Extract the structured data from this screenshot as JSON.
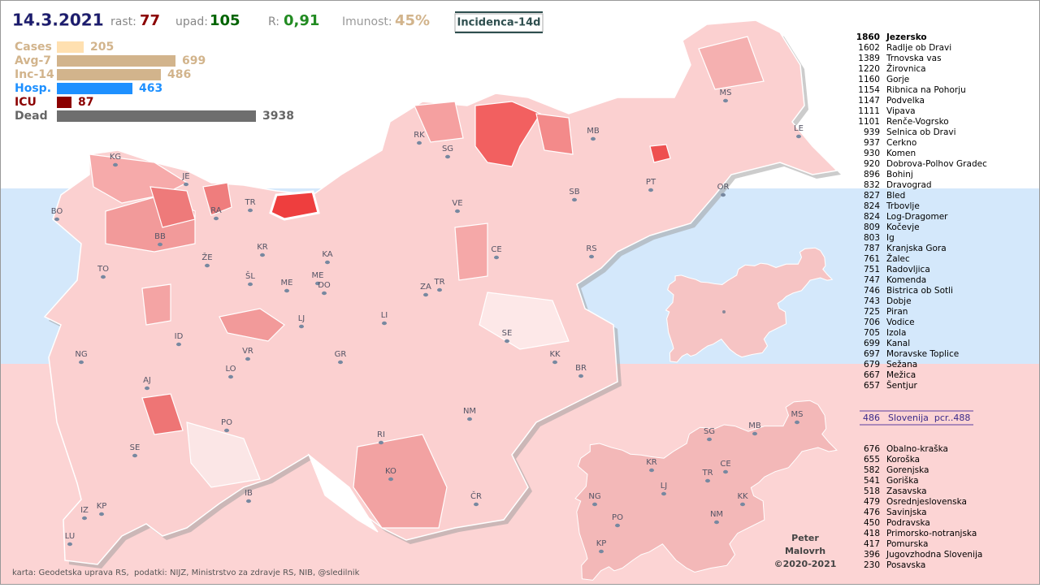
{
  "header": {
    "date": "14.3.2021",
    "growth_label": "rast:",
    "growth": "77",
    "decline_label": "upad:",
    "decline": "105",
    "r_label": "R:",
    "r": "0,91",
    "immunity_label": "Imunost:",
    "immunity": "45%",
    "mode_button": "Incidenca-14d"
  },
  "stats": [
    {
      "label": "Cases",
      "value": "205"
    },
    {
      "label": "Avg-7",
      "value": "699"
    },
    {
      "label": "Inc-14",
      "value": "486"
    },
    {
      "label": "Hosp.",
      "value": "463"
    },
    {
      "label": "ICU",
      "value": "87"
    },
    {
      "label": "Dead",
      "value": "3938"
    }
  ],
  "municipalities": [
    {
      "value": "1860",
      "name": "Jezersko"
    },
    {
      "value": "1602",
      "name": "Radlje ob Dravi"
    },
    {
      "value": "1389",
      "name": "Trnovska vas"
    },
    {
      "value": "1220",
      "name": "Žirovnica"
    },
    {
      "value": "1160",
      "name": "Gorje"
    },
    {
      "value": "1154",
      "name": "Ribnica na Pohorju"
    },
    {
      "value": "1147",
      "name": "Podvelka"
    },
    {
      "value": "1111",
      "name": "Vipava"
    },
    {
      "value": "1101",
      "name": "Renče-Vogrsko"
    },
    {
      "value": "939",
      "name": "Selnica ob Dravi"
    },
    {
      "value": "937",
      "name": "Cerkno"
    },
    {
      "value": "930",
      "name": "Komen"
    },
    {
      "value": "920",
      "name": "Dobrova-Polhov Gradec"
    },
    {
      "value": "896",
      "name": "Bohinj"
    },
    {
      "value": "832",
      "name": "Dravograd"
    },
    {
      "value": "827",
      "name": "Bled"
    },
    {
      "value": "824",
      "name": "Trbovlje"
    },
    {
      "value": "824",
      "name": "Log-Dragomer"
    },
    {
      "value": "809",
      "name": "Kočevje"
    },
    {
      "value": "803",
      "name": "Ig"
    },
    {
      "value": "787",
      "name": "Kranjska Gora"
    },
    {
      "value": "761",
      "name": "Žalec"
    },
    {
      "value": "751",
      "name": "Radovljica"
    },
    {
      "value": "747",
      "name": "Komenda"
    },
    {
      "value": "746",
      "name": "Bistrica ob Sotli"
    },
    {
      "value": "743",
      "name": "Dobje"
    },
    {
      "value": "725",
      "name": "Piran"
    },
    {
      "value": "706",
      "name": "Vodice"
    },
    {
      "value": "705",
      "name": "Izola"
    },
    {
      "value": "699",
      "name": "Kanal"
    },
    {
      "value": "697",
      "name": "Moravske Toplice"
    },
    {
      "value": "679",
      "name": "Sežana"
    },
    {
      "value": "667",
      "name": "Mežica"
    },
    {
      "value": "657",
      "name": "Šentjur"
    }
  ],
  "slovenia": {
    "value": "486",
    "label": "Slovenija  pcr..488"
  },
  "regions": [
    {
      "value": "676",
      "name": "Obalno-kraška"
    },
    {
      "value": "655",
      "name": "Koroška"
    },
    {
      "value": "582",
      "name": "Gorenjska"
    },
    {
      "value": "541",
      "name": "Goriška"
    },
    {
      "value": "518",
      "name": "Zasavska"
    },
    {
      "value": "479",
      "name": "Osrednjeslovenska"
    },
    {
      "value": "476",
      "name": "Savinjska"
    },
    {
      "value": "450",
      "name": "Podravska"
    },
    {
      "value": "418",
      "name": "Primorsko-notranjska"
    },
    {
      "value": "417",
      "name": "Pomurska"
    },
    {
      "value": "396",
      "name": "Jugovzhodna Slovenija"
    },
    {
      "value": "230",
      "name": "Posavska"
    }
  ],
  "map_labels": [
    "KG",
    "JE",
    "BO",
    "RA",
    "TR",
    "BB",
    "KR",
    "TO",
    "ŽE",
    "ŠL",
    "KA",
    "ME",
    "ME",
    "DO",
    "LJ",
    "ZA",
    "TR",
    "CE",
    "RS",
    "SB",
    "PT",
    "MB",
    "SG",
    "RK",
    "MS",
    "LE",
    "OR",
    "VE",
    "LI",
    "SE",
    "KK",
    "BR",
    "NM",
    "KO",
    "ČR",
    "RI",
    "GR",
    "VR",
    "LO",
    "ID",
    "AJ",
    "NG",
    "PO",
    "SE",
    "IB",
    "IZ",
    "KP",
    "LU"
  ],
  "inset_labels": [
    "MS",
    "MB",
    "SG",
    "KR",
    "TR",
    "CE",
    "LJ",
    "KK",
    "NG",
    "PO",
    "NM",
    "KP"
  ],
  "footer": {
    "source": "karta: Geodetska uprava RS,  podatki: NIJZ, Ministrstvo za zdravje RS, NIB, @sledilnik",
    "author_first": "Peter",
    "author_last": "Malovrh",
    "copyright": "©2020-2021"
  }
}
